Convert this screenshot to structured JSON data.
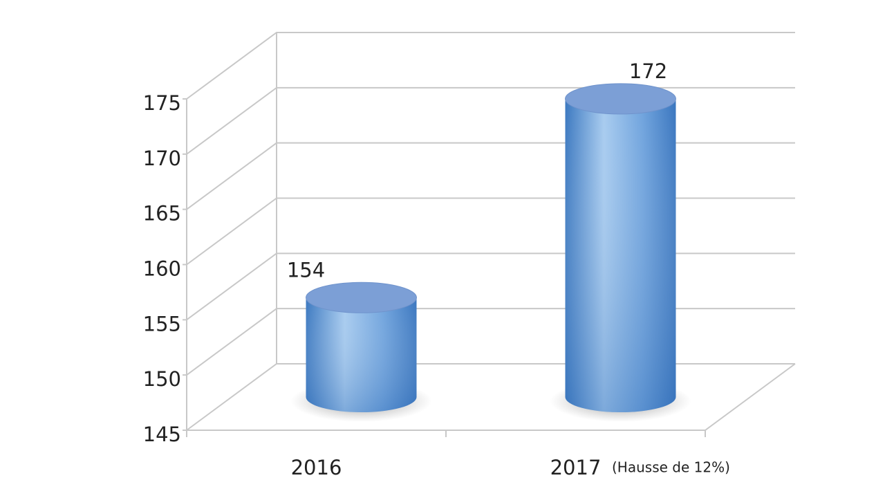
{
  "chart_data": {
    "type": "bar3d",
    "categories": [
      "2016",
      "2017"
    ],
    "values": [
      154,
      172
    ],
    "color": "#4a8ad0",
    "ylim": [
      145,
      175
    ],
    "yticks": [
      145,
      150,
      155,
      160,
      165,
      170,
      175
    ],
    "grid": true,
    "annotation": "(Hausse de 12%)"
  }
}
